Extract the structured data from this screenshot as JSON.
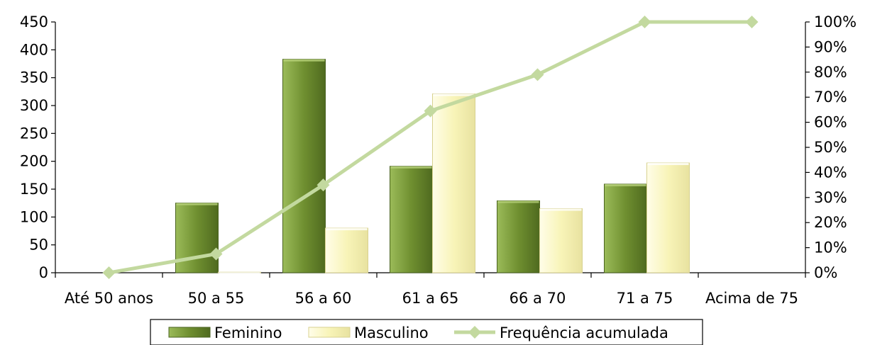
{
  "chart_data": {
    "type": "bar",
    "categories": [
      "Até 50 anos",
      "50 a 55",
      "56 a 60",
      "61 a 65",
      "66 a 70",
      "71 a 75",
      "Acima de 75"
    ],
    "series": [
      {
        "name": "Feminino",
        "type": "bar",
        "axis": "left",
        "color": "#7a9a3c",
        "values": [
          0,
          125,
          383,
          191,
          129,
          159,
          0
        ]
      },
      {
        "name": "Masculino",
        "type": "bar",
        "axis": "left",
        "color": "#fbf8c8",
        "values": [
          0,
          1,
          80,
          321,
          115,
          197,
          0
        ]
      },
      {
        "name": "Frequência acumulada",
        "type": "line",
        "axis": "right",
        "color": "#c3d99f",
        "values": [
          0,
          0.075,
          0.35,
          0.645,
          0.79,
          1.0,
          1.0
        ]
      }
    ],
    "y_left": {
      "min": 0,
      "max": 450,
      "step": 50,
      "ticks": [
        "0",
        "50",
        "100",
        "150",
        "200",
        "250",
        "300",
        "350",
        "400",
        "450"
      ]
    },
    "y_right": {
      "min": 0,
      "max": 1,
      "step": 0.1,
      "ticks": [
        "0%",
        "10%",
        "20%",
        "30%",
        "40%",
        "50%",
        "60%",
        "70%",
        "80%",
        "90%",
        "100%"
      ]
    },
    "legend": {
      "placement": "bottom",
      "entries": [
        "Feminino",
        "Masculino",
        "Frequência acumulada"
      ]
    },
    "grid": false,
    "title": "",
    "xlabel": "",
    "ylabel": ""
  }
}
